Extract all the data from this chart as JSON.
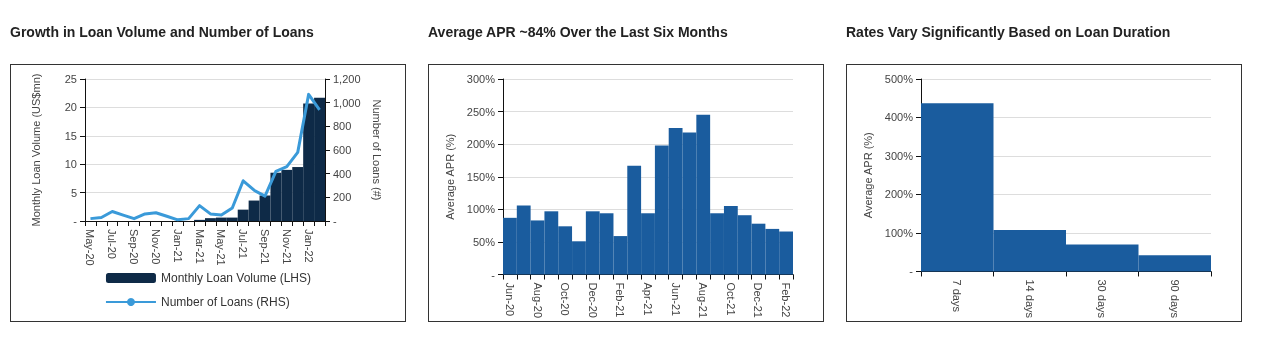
{
  "chart_data": [
    {
      "type": "bar",
      "title": "Growth in Loan Volume and Number of Loans",
      "ylabel": "Monthly Loan Volume (US$mn)",
      "y2label": "Number of Loans (#)",
      "categories": [
        "May-20",
        null,
        "Jul-20",
        null,
        "Sep-20",
        null,
        "Nov-20",
        null,
        "Jan-21",
        null,
        "Mar-21",
        null,
        "May-21",
        null,
        "Jul-21",
        null,
        "Sep-21",
        null,
        "Nov-21",
        null,
        "Jan-22",
        null
      ],
      "series": [
        {
          "name": "Monthly Loan Volume (LHS)",
          "type": "bar",
          "color": "#0e2a47",
          "values": [
            0,
            0,
            0,
            0,
            0,
            0,
            0,
            0,
            0,
            0,
            0.2,
            0.5,
            0.6,
            0.6,
            2,
            3.6,
            4.5,
            8.5,
            9,
            9.5,
            20.7,
            21.7
          ]
        },
        {
          "name": "Number of Loans (RHS)",
          "type": "line",
          "axis": "y2",
          "color": "#3a9ad9",
          "values": [
            20,
            30,
            80,
            50,
            20,
            60,
            70,
            40,
            10,
            20,
            130,
            60,
            50,
            110,
            340,
            260,
            210,
            420,
            460,
            580,
            1070,
            940
          ]
        }
      ],
      "ylim": [
        0,
        25
      ],
      "yticks": [
        {
          "value": 0,
          "label": "-"
        },
        5,
        10,
        15,
        20,
        25
      ],
      "y2lim": [
        0,
        1200
      ],
      "y2ticks": [
        {
          "value": 0,
          "label": "-"
        },
        200,
        400,
        600,
        800,
        {
          "value": 1000,
          "label": "1,000"
        },
        {
          "value": 1200,
          "label": "1,200"
        }
      ],
      "grid": "y",
      "legend": "bottom",
      "marker": "none",
      "line_style": "solid"
    },
    {
      "type": "bar",
      "title": "Average APR ~84% Over the Last Six Months",
      "ylabel": "Average APR (%)",
      "categories": [
        "Jun-20",
        null,
        "Aug-20",
        null,
        "Oct-20",
        null,
        "Dec-20",
        null,
        "Feb-21",
        null,
        "Apr-21",
        null,
        "Jun-21",
        null,
        "Aug-21",
        null,
        "Oct-21",
        null,
        "Dec-21",
        null,
        "Feb-22"
      ],
      "values": [
        87,
        106,
        83,
        97,
        74,
        51,
        97,
        94,
        59,
        167,
        94,
        198,
        225,
        218,
        245,
        94,
        105,
        91,
        78,
        70,
        66
      ],
      "color": "#1a5c9e",
      "ylim": [
        0,
        300
      ],
      "yticks": [
        {
          "value": 0,
          "label": "-"
        },
        {
          "value": 50,
          "label": "50%"
        },
        {
          "value": 100,
          "label": "100%"
        },
        {
          "value": 150,
          "label": "150%"
        },
        {
          "value": 200,
          "label": "200%"
        },
        {
          "value": 250,
          "label": "250%"
        },
        {
          "value": 300,
          "label": "300%"
        }
      ],
      "grid": "y"
    },
    {
      "type": "bar",
      "title": "Rates Vary Significantly Based on Loan Duration",
      "ylabel": "Average APR (%)",
      "categories": [
        "7 days",
        "14 days",
        "30 days",
        "90 days"
      ],
      "values": [
        437,
        108,
        70,
        42
      ],
      "color": "#1a5c9e",
      "ylim": [
        0,
        500
      ],
      "yticks": [
        {
          "value": 0,
          "label": "-"
        },
        {
          "value": 100,
          "label": "100%"
        },
        {
          "value": 200,
          "label": "200%"
        },
        {
          "value": 300,
          "label": "300%"
        },
        {
          "value": 400,
          "label": "400%"
        },
        {
          "value": 500,
          "label": "500%"
        }
      ],
      "grid": "y"
    }
  ]
}
